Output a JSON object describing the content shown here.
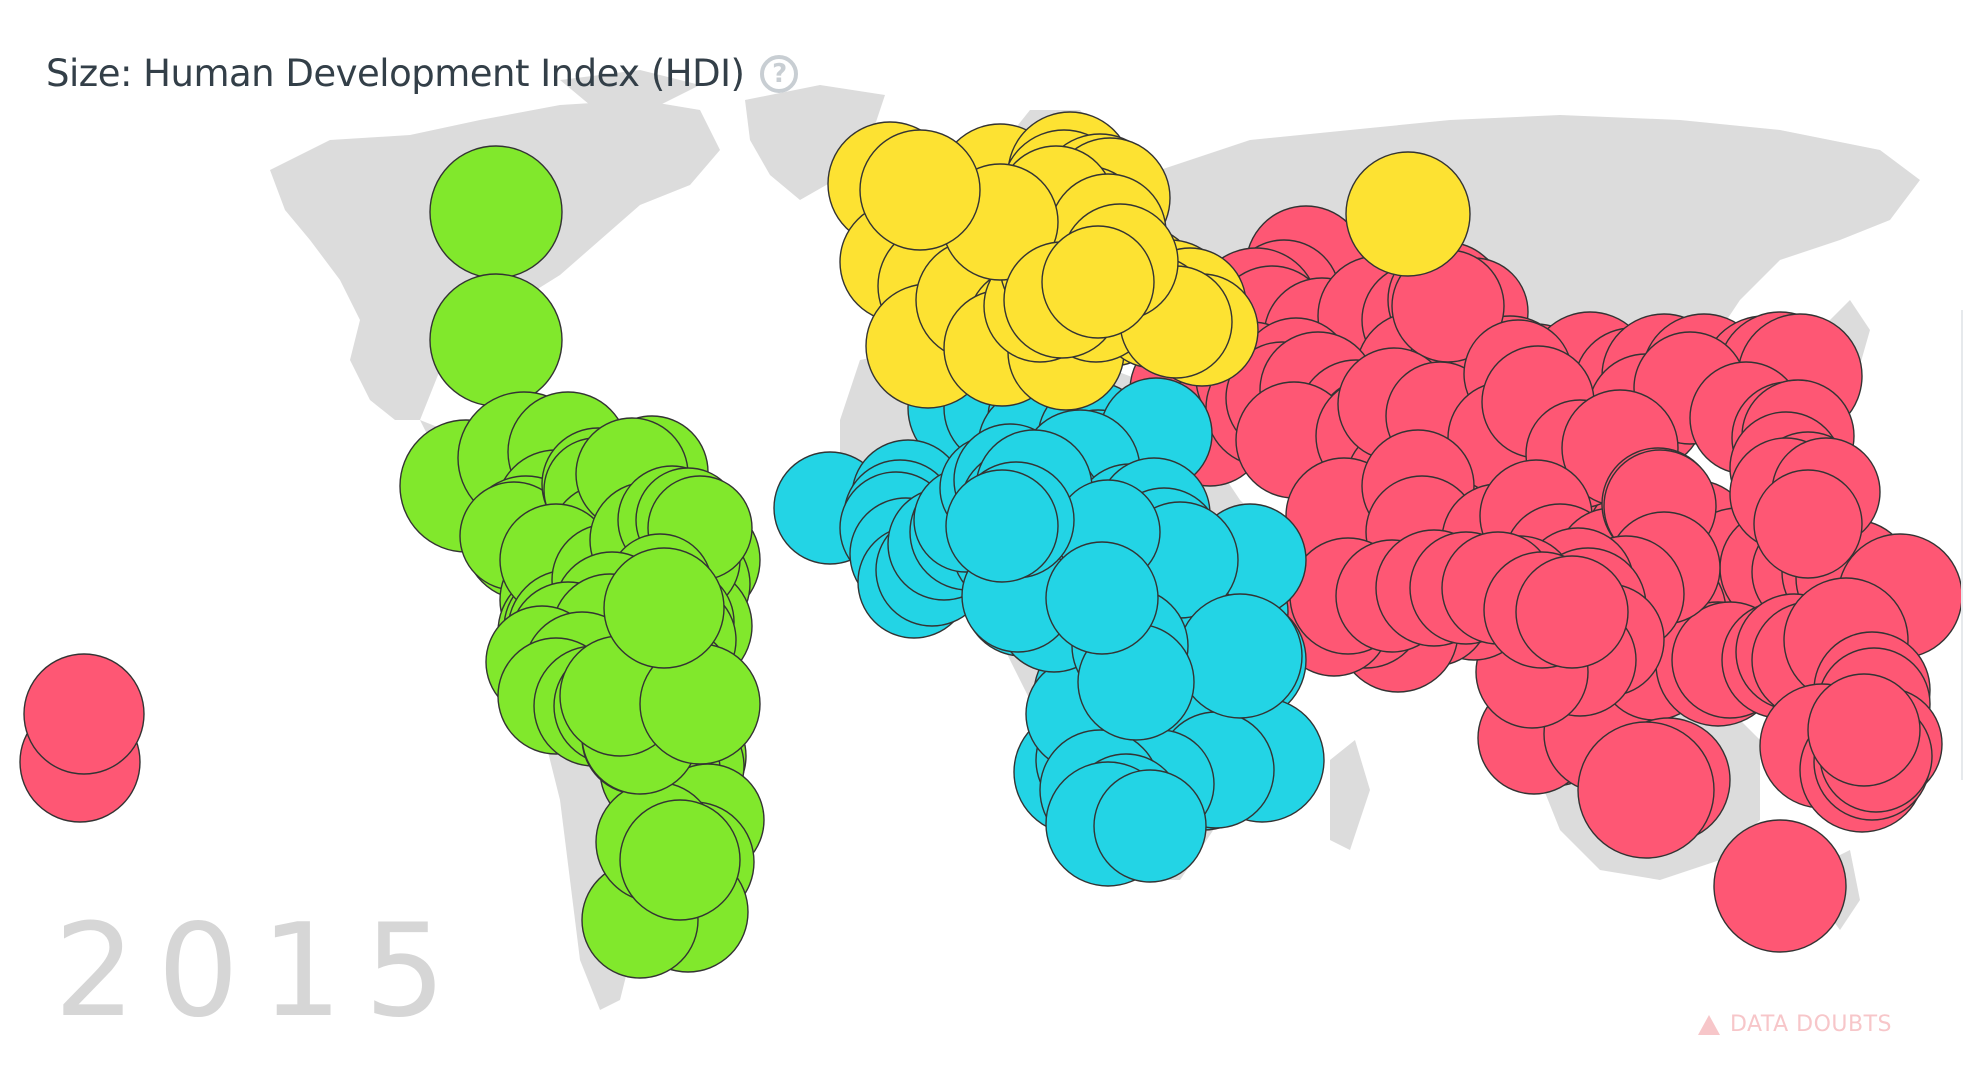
{
  "size_indicator": {
    "label": "Size: Human Development Index (HDI)",
    "help_icon": "question-circle-icon"
  },
  "year": "2015",
  "data_doubts": {
    "label": "DATA DOUBTS",
    "icon": "warning-triangle-icon"
  },
  "colors": {
    "americas": "#81e82c",
    "europe": "#fde232",
    "africa": "#23d4e5",
    "asia": "#fe5774",
    "land": "#dcdcdc",
    "bubble_stroke": "#333333"
  }
}
